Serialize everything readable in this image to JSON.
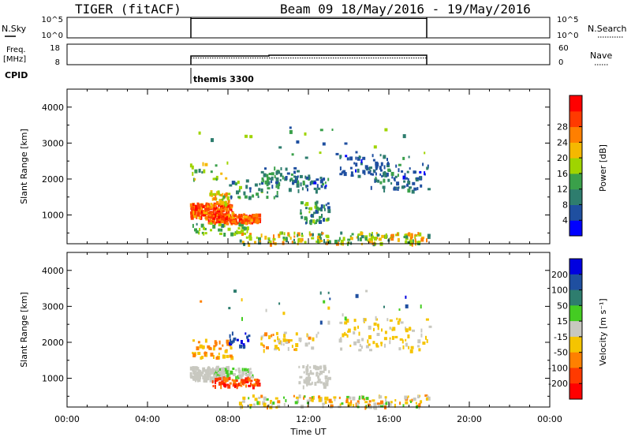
{
  "header": {
    "title": "TIGER (fitACF)",
    "beam_date": "Beam 09  18/May/2016 - 19/May/2016"
  },
  "top_panels": {
    "nsky": {
      "label": "N.Sky",
      "ticks": [
        "10^5",
        "10^0"
      ],
      "right_ticks": [
        "10^5",
        "10^0"
      ],
      "right_label": "N.Search"
    },
    "freq": {
      "label_line1": "Freq.",
      "label_line2": "[MHz]",
      "ticks": [
        "18",
        "8"
      ],
      "right_ticks": [
        "60",
        "0"
      ],
      "right_label": "Nave"
    },
    "cpid": {
      "label": "CPID",
      "mode": "themis 3300"
    }
  },
  "colors": {
    "power": [
      "#0000ff",
      "#1f4fa0",
      "#2e7d6e",
      "#3aa04a",
      "#9fd400",
      "#f5b800",
      "#ff7f00",
      "#ff3a00",
      "#ff0000"
    ],
    "velocity": [
      "#0000e0",
      "#1f4fa0",
      "#2e7d6e",
      "#44cc22",
      "#c8c8c0",
      "#f5c400",
      "#ff8000",
      "#ff3a00",
      "#ff0000"
    ]
  },
  "chart_data": [
    {
      "type": "heatmap",
      "name": "power",
      "ylabel": "Slant Range [km]",
      "xlabel": "Time UT",
      "xlim": [
        0,
        24
      ],
      "ylim": [
        200,
        4500
      ],
      "yticks": [
        "1000",
        "2000",
        "3000",
        "4000"
      ],
      "xticks": [
        "00:00",
        "04:00",
        "08:00",
        "12:00",
        "16:00",
        "20:00",
        "00:00"
      ],
      "colorbar": {
        "label": "Power [dB]",
        "ticks": [
          "4",
          "8",
          "12",
          "16",
          "20",
          "24",
          "28"
        ]
      },
      "clusters": [
        {
          "t": [
            6.1,
            8.2
          ],
          "r": [
            950,
            1350
          ],
          "val": [
            20,
            30
          ],
          "n": 200
        },
        {
          "t": [
            7.0,
            9.5
          ],
          "r": [
            800,
            1050
          ],
          "val": [
            20,
            30
          ],
          "n": 150
        },
        {
          "t": [
            7.0,
            8.0
          ],
          "r": [
            1300,
            1700
          ],
          "val": [
            14,
            24
          ],
          "n": 40
        },
        {
          "t": [
            6.2,
            9.0
          ],
          "r": [
            500,
            800
          ],
          "val": [
            10,
            18
          ],
          "n": 40
        },
        {
          "t": [
            8.0,
            10.5
          ],
          "r": [
            1500,
            2000
          ],
          "val": [
            6,
            16
          ],
          "n": 40
        },
        {
          "t": [
            6.1,
            8.0
          ],
          "r": [
            2000,
            2500
          ],
          "val": [
            10,
            20
          ],
          "n": 20
        },
        {
          "t": [
            9.5,
            12.0
          ],
          "r": [
            1900,
            2350
          ],
          "val": [
            6,
            14
          ],
          "n": 50
        },
        {
          "t": [
            11.0,
            13.0
          ],
          "r": [
            1700,
            2100
          ],
          "val": [
            3,
            12
          ],
          "n": 40
        },
        {
          "t": [
            11.5,
            13.0
          ],
          "r": [
            800,
            1400
          ],
          "val": [
            6,
            16
          ],
          "n": 50
        },
        {
          "t": [
            13.5,
            16.0
          ],
          "r": [
            2100,
            2700
          ],
          "val": [
            3,
            10
          ],
          "n": 50
        },
        {
          "t": [
            15.0,
            18.0
          ],
          "r": [
            1700,
            2500
          ],
          "val": [
            3,
            12
          ],
          "n": 80
        },
        {
          "t": [
            8.5,
            18.0
          ],
          "r": [
            220,
            550
          ],
          "val": [
            8,
            24
          ],
          "n": 180
        },
        {
          "t": [
            6.0,
            18.0
          ],
          "r": [
            2600,
            3500
          ],
          "val": [
            4,
            16
          ],
          "n": 25
        }
      ]
    },
    {
      "type": "heatmap",
      "name": "velocity",
      "ylabel": "Slant Range [km]",
      "xlabel": "Time UT",
      "xlim": [
        0,
        24
      ],
      "ylim": [
        200,
        4500
      ],
      "yticks": [
        "1000",
        "2000",
        "3000",
        "4000"
      ],
      "xticks": [
        "00:00",
        "04:00",
        "08:00",
        "12:00",
        "16:00",
        "20:00",
        "00:00"
      ],
      "colorbar": {
        "label": "Velocity [m s⁻¹]",
        "ticks": [
          "200",
          "100",
          "50",
          "15",
          "-15",
          "-50",
          "-100",
          "-200"
        ]
      },
      "clusters": [
        {
          "t": [
            6.1,
            8.0
          ],
          "r": [
            950,
            1350
          ],
          "val": [
            4,
            4
          ],
          "n": 180
        },
        {
          "t": [
            7.2,
            9.2
          ],
          "r": [
            1050,
            1300
          ],
          "val": [
            3,
            4
          ],
          "n": 60
        },
        {
          "t": [
            7.2,
            9.5
          ],
          "r": [
            800,
            1050
          ],
          "val": [
            6,
            8
          ],
          "n": 80
        },
        {
          "t": [
            6.2,
            8.2
          ],
          "r": [
            1600,
            2100
          ],
          "val": [
            5,
            6
          ],
          "n": 50
        },
        {
          "t": [
            8.0,
            9.0
          ],
          "r": [
            1900,
            2300
          ],
          "val": [
            0,
            1
          ],
          "n": 20
        },
        {
          "t": [
            9.5,
            12.5
          ],
          "r": [
            1800,
            2300
          ],
          "val": [
            4,
            6
          ],
          "n": 50
        },
        {
          "t": [
            11.5,
            13.0
          ],
          "r": [
            800,
            1400
          ],
          "val": [
            4,
            4
          ],
          "n": 60
        },
        {
          "t": [
            13.5,
            18.0
          ],
          "r": [
            1800,
            2700
          ],
          "val": [
            4,
            5
          ],
          "n": 90
        },
        {
          "t": [
            8.5,
            18.0
          ],
          "r": [
            220,
            550
          ],
          "val": [
            3,
            6
          ],
          "n": 150
        },
        {
          "t": [
            6.0,
            18.0
          ],
          "r": [
            2600,
            3500
          ],
          "val": [
            0,
            6
          ],
          "n": 25
        }
      ]
    }
  ]
}
